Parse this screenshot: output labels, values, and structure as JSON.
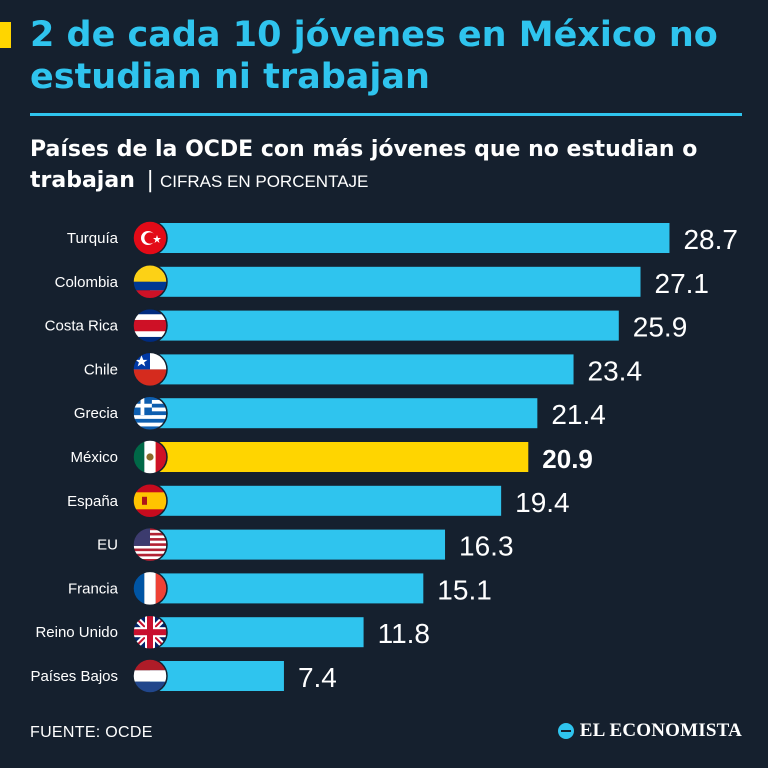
{
  "header": {
    "title": "2 de cada 10 jóvenes en México no estudian ni trabajan",
    "subtitle": "Países de la OCDE con más jóvenes que no estudian o trabajan",
    "subtitle_separator": "|",
    "subtitle_unit": "CIFRAS EN PORCENTAJE"
  },
  "colors": {
    "background": "#15202e",
    "bar": "#2fc4ee",
    "highlight_bar": "#ffd500",
    "title": "#2fc4ee"
  },
  "chart_data": {
    "type": "bar",
    "orientation": "horizontal",
    "title": "Países de la OCDE con más jóvenes que no estudian o trabajan",
    "unit": "CIFRAS EN PORCENTAJE",
    "categories": [
      "Turquía",
      "Colombia",
      "Costa Rica",
      "Chile",
      "Grecia",
      "México",
      "España",
      "EU",
      "Francia",
      "Reino Unido",
      "Países Bajos"
    ],
    "values": [
      28.7,
      27.1,
      25.9,
      23.4,
      21.4,
      20.9,
      19.4,
      16.3,
      15.1,
      11.8,
      7.4
    ],
    "value_labels": [
      "28.7",
      "27.1",
      "25.9",
      "23.4",
      "21.4",
      "20.9",
      "19.4",
      "16.3",
      "15.1",
      "11.8",
      "7.4"
    ],
    "flags": [
      "turkey-flag-icon",
      "colombia-flag-icon",
      "costa-rica-flag-icon",
      "chile-flag-icon",
      "greece-flag-icon",
      "mexico-flag-icon",
      "spain-flag-icon",
      "usa-flag-icon",
      "france-flag-icon",
      "uk-flag-icon",
      "netherlands-flag-icon"
    ],
    "highlight": "México",
    "xlim": [
      0,
      30
    ],
    "grid": false,
    "legend": "none"
  },
  "footer": {
    "source": "FUENTE: OCDE",
    "brand": "EL ECONOMISTA"
  }
}
